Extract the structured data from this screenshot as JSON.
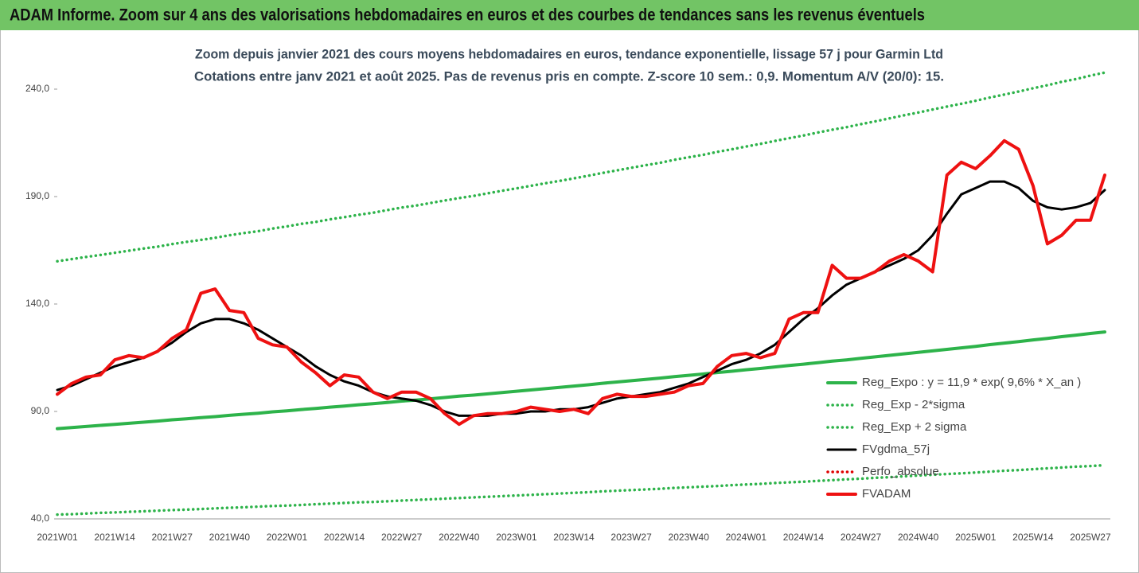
{
  "chart_data": {
    "type": "line",
    "title": "ADAM Informe. Zoom sur 4 ans des valorisations hebdomadaires en euros et des courbes de tendances sans les revenus éventuels",
    "subtitle": [
      "Zoom depuis janvier 2021 des cours moyens hebdomadaires en euros, tendance exponentielle, lissage 57 j pour Garmin Ltd",
      "Cotations entre janv 2021 et août 2025.  Pas de revenus pris en compte. Z-score 10 sem.: 0,9. Momentum A/V (20/0): 15."
    ],
    "categories": [
      "2021W01",
      null,
      null,
      null,
      "2021W14",
      null,
      null,
      null,
      "2021W27",
      null,
      null,
      null,
      "2021W40",
      null,
      null,
      null,
      "2022W01",
      null,
      null,
      null,
      "2022W14",
      null,
      null,
      null,
      "2022W27",
      null,
      null,
      null,
      "2022W40",
      null,
      null,
      null,
      "2023W01",
      null,
      null,
      null,
      "2023W14",
      null,
      null,
      null,
      "2023W27",
      null,
      null,
      null,
      "2023W40",
      null,
      null,
      null,
      "2024W01",
      null,
      null,
      null,
      "2024W14",
      null,
      null,
      null,
      "2024W27",
      null,
      null,
      null,
      "2024W40",
      null,
      null,
      null,
      "2025W01",
      null,
      null,
      null,
      "2025W14",
      null,
      null,
      null,
      "2025W27",
      null
    ],
    "ylim": [
      40,
      250
    ],
    "yticks": [
      {
        "value": 40,
        "label": "40,0"
      },
      {
        "value": 90,
        "label": "90,0"
      },
      {
        "value": 140,
        "label": "140,0"
      },
      {
        "value": 190,
        "label": "190,0"
      },
      {
        "value": 240,
        "label": "240,0"
      }
    ],
    "legend": "lower right",
    "series": [
      {
        "name": "Reg_Expo : y = 11,9 * exp( 9,6% *  X_an )",
        "color": "#2db34a",
        "style": "solid",
        "values": [
          82.0,
          82.5,
          83.0,
          83.5,
          84.0,
          84.5,
          85.0,
          85.5,
          86.1,
          86.6,
          87.1,
          87.6,
          88.2,
          88.7,
          89.2,
          89.8,
          90.3,
          90.9,
          91.4,
          92.0,
          92.5,
          93.1,
          93.6,
          94.2,
          94.8,
          95.3,
          95.9,
          96.5,
          97.1,
          97.6,
          98.2,
          98.8,
          99.4,
          100.0,
          100.6,
          101.2,
          101.8,
          102.4,
          103.1,
          103.7,
          104.3,
          104.9,
          105.5,
          106.2,
          106.8,
          107.4,
          108.1,
          108.7,
          109.4,
          110.0,
          110.7,
          111.4,
          112.0,
          112.7,
          113.4,
          114.0,
          114.7,
          115.4,
          116.1,
          116.8,
          117.5,
          118.2,
          118.9,
          119.6,
          120.3,
          121.1,
          121.8,
          122.5,
          123.3,
          124.0,
          124.8,
          125.5,
          126.3,
          127.0
        ]
      },
      {
        "name": "Reg_Exp - 2*sigma",
        "color": "#2db34a",
        "style": "dotted",
        "values": [
          42.0,
          42.2,
          42.5,
          42.8,
          43.0,
          43.3,
          43.5,
          43.8,
          44.1,
          44.3,
          44.6,
          44.9,
          45.2,
          45.4,
          45.7,
          46.0,
          46.2,
          46.5,
          46.8,
          47.1,
          47.4,
          47.7,
          47.9,
          48.2,
          48.5,
          48.8,
          49.1,
          49.4,
          49.7,
          50.0,
          50.3,
          50.6,
          50.9,
          51.2,
          51.5,
          51.8,
          52.1,
          52.4,
          52.8,
          53.1,
          53.4,
          53.7,
          54.0,
          54.4,
          54.7,
          55.0,
          55.3,
          55.7,
          56.0,
          56.3,
          56.7,
          57.0,
          57.3,
          57.7,
          58.0,
          58.4,
          58.7,
          59.1,
          59.4,
          59.8,
          60.2,
          60.5,
          60.9,
          61.2,
          61.6,
          62.0,
          62.4,
          62.7,
          63.1,
          63.5,
          63.9,
          64.3,
          64.6,
          65.0
        ]
      },
      {
        "name": "Reg_Exp + 2 sigma",
        "color": "#2db34a",
        "style": "dotted",
        "values": [
          159.9,
          160.9,
          161.9,
          162.8,
          163.8,
          164.8,
          165.8,
          166.7,
          167.9,
          168.9,
          169.8,
          170.8,
          172.0,
          173.0,
          173.9,
          175.1,
          176.1,
          177.3,
          178.2,
          179.4,
          180.4,
          181.5,
          182.5,
          183.7,
          184.9,
          185.8,
          187.0,
          188.2,
          189.3,
          190.3,
          191.5,
          192.7,
          193.8,
          195.0,
          196.2,
          197.3,
          198.5,
          199.7,
          201.0,
          202.2,
          203.4,
          204.6,
          205.7,
          207.1,
          208.3,
          209.4,
          210.8,
          212.0,
          213.3,
          214.5,
          215.9,
          217.2,
          218.4,
          219.8,
          221.1,
          222.3,
          223.7,
          225.0,
          226.4,
          227.8,
          229.1,
          230.5,
          231.9,
          233.2,
          234.6,
          236.1,
          237.5,
          238.9,
          240.4,
          241.8,
          243.4,
          244.7,
          246.3,
          247.7
        ]
      },
      {
        "name": "FVgdma_57j",
        "color": "#000000",
        "style": "solid",
        "values": [
          100,
          102,
          105,
          108,
          111,
          113,
          115,
          118,
          122,
          127,
          131,
          133,
          133,
          131,
          128,
          124,
          120,
          116,
          111,
          107,
          104,
          102,
          99,
          97,
          96,
          95,
          93,
          90,
          88,
          88,
          88,
          89,
          89,
          90,
          90,
          91,
          91,
          92,
          94,
          96,
          97,
          98,
          99,
          101,
          103,
          106,
          109,
          112,
          114,
          117,
          121,
          127,
          133,
          138,
          144,
          149,
          152,
          155,
          158,
          161,
          165,
          172,
          182,
          191,
          194,
          197,
          197,
          194,
          188,
          185,
          184,
          185,
          187,
          193
        ]
      },
      {
        "name": "Perfo_absolue",
        "color": "#e00000",
        "style": "dotted",
        "values": [
          null,
          null,
          null,
          null,
          null,
          null,
          null,
          null,
          null,
          null,
          null,
          null,
          null,
          null,
          null,
          null,
          null,
          null,
          null,
          null,
          null,
          null,
          null,
          null,
          null,
          null,
          null,
          null,
          null,
          null,
          null,
          null,
          null,
          null,
          null,
          null,
          null,
          null,
          null,
          null,
          null,
          null,
          null,
          null,
          null,
          null,
          null,
          null,
          null,
          null,
          null,
          null,
          null,
          null,
          null,
          null,
          null,
          null,
          null,
          null,
          null,
          null,
          null,
          null,
          null,
          null,
          null,
          null,
          null,
          null,
          null,
          null,
          null,
          null
        ]
      },
      {
        "name": "FVADAM",
        "color": "#ee1111",
        "style": "solid",
        "values": [
          98,
          103,
          106,
          107,
          114,
          116,
          115,
          118,
          124,
          128,
          145,
          147,
          137,
          136,
          124,
          121,
          120,
          113,
          108,
          102,
          107,
          106,
          99,
          96,
          99,
          99,
          96,
          89,
          84,
          88,
          89,
          89,
          90,
          92,
          91,
          90,
          91,
          89,
          96,
          98,
          97,
          97,
          98,
          99,
          102,
          103,
          111,
          116,
          117,
          115,
          117,
          133,
          136,
          136,
          158,
          152,
          152,
          155,
          160,
          163,
          160,
          155,
          200,
          206,
          203,
          209,
          216,
          212,
          195,
          168,
          172,
          179,
          179,
          200
        ]
      }
    ]
  }
}
